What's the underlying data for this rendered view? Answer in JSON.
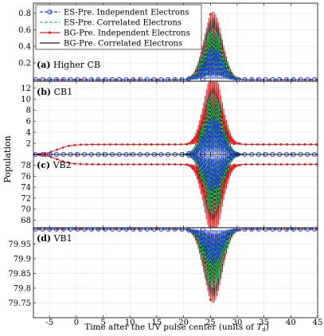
{
  "figure": {
    "ylabel": "Population",
    "xlabel_prefix": "Time after the UV pulse center (units of ",
    "xlabel_sym": "T",
    "xlabel_sub": "d",
    "xlabel_suffix": ")"
  },
  "legend": {
    "placement": "inside-top-left of panel (a)",
    "entries": [
      {
        "label": "ES-Pre. Independent Electrons",
        "color": "#1f3fd8",
        "style": "dashed-circle"
      },
      {
        "label": "ES-Pre. Correlated Electrons",
        "color": "#22c55e",
        "style": "dashed"
      },
      {
        "label": "BG-Pre. Independent Electrons",
        "color": "#e01919",
        "style": "solid-dot"
      },
      {
        "label": "BG-Pre. Correlated Electrons",
        "color": "#222222",
        "style": "solid"
      }
    ]
  },
  "chart_data": [
    {
      "type": "line",
      "panel_label": "(a)",
      "panel_name": "Higher CB",
      "xlim": [
        -8,
        45
      ],
      "ylim": [
        -0.02,
        0.92
      ],
      "yticks": [
        "0.2",
        "0.4",
        "0.6",
        "0.8"
      ],
      "ytick_values": [
        0.2,
        0.4,
        0.6,
        0.8
      ],
      "grid": true,
      "baseline": 0,
      "oscillation": {
        "center": 25.5,
        "width": 2.4,
        "period": 0.5,
        "amp": {
          "es_ind": 0.4,
          "es_cor": 0.62,
          "bg_ind": 0.82,
          "bg_cor": 0.75
        }
      }
    },
    {
      "type": "line",
      "panel_label": "(b)",
      "panel_name": "CB1",
      "xlim": [
        -8,
        45
      ],
      "ylim": [
        0,
        13.2
      ],
      "yticks": [
        "2",
        "4",
        "6",
        "8",
        "10",
        "12"
      ],
      "ytick_values": [
        2,
        4,
        6,
        8,
        10,
        12
      ],
      "grid": true,
      "baseline": 0,
      "bg_ind_plateau": 1.8,
      "oscillation": {
        "center": 25.5,
        "width": 2.4,
        "period": 0.5,
        "amp": {
          "es_ind": 7.0,
          "es_cor": 11.0,
          "bg_ind": 13.0,
          "bg_cor": 12.0
        }
      }
    },
    {
      "type": "line",
      "panel_label": "(c)",
      "panel_name": "VB2",
      "xlim": [
        -8,
        45
      ],
      "ylim": [
        66.6,
        80
      ],
      "yticks": [
        "68",
        "70",
        "72",
        "74",
        "76",
        "78"
      ],
      "ytick_values": [
        68,
        70,
        72,
        74,
        76,
        78
      ],
      "grid": true,
      "baseline": 80,
      "bg_ind_plateau": 78.2,
      "oscillation": {
        "center": 25.5,
        "width": 2.4,
        "period": 0.5,
        "amp": {
          "es_ind": 7.0,
          "es_cor": 11.0,
          "bg_ind": 13.2,
          "bg_cor": 12.0
        }
      }
    },
    {
      "type": "line",
      "panel_label": "(d)",
      "panel_name": "VB1",
      "xlim": [
        -8,
        45
      ],
      "ylim": [
        79.7,
        80.005
      ],
      "yticks": [
        "79.75",
        "79.8",
        "79.85",
        "79.9",
        "79.95"
      ],
      "ytick_values": [
        79.75,
        79.8,
        79.85,
        79.9,
        79.95
      ],
      "grid": true,
      "baseline": 80,
      "oscillation": {
        "center": 25.5,
        "width": 2.4,
        "period": 0.5,
        "amp": {
          "es_ind": 0.12,
          "es_cor": 0.2,
          "bg_ind": 0.25,
          "bg_cor": 0.23
        }
      }
    }
  ],
  "xaxis": {
    "xlim": [
      -8,
      45
    ],
    "ticks": [
      "-5",
      "0",
      "5",
      "10",
      "15",
      "20",
      "25",
      "30",
      "35",
      "40",
      "45"
    ],
    "tick_values": [
      -5,
      0,
      5,
      10,
      15,
      20,
      25,
      30,
      35,
      40,
      45
    ]
  }
}
